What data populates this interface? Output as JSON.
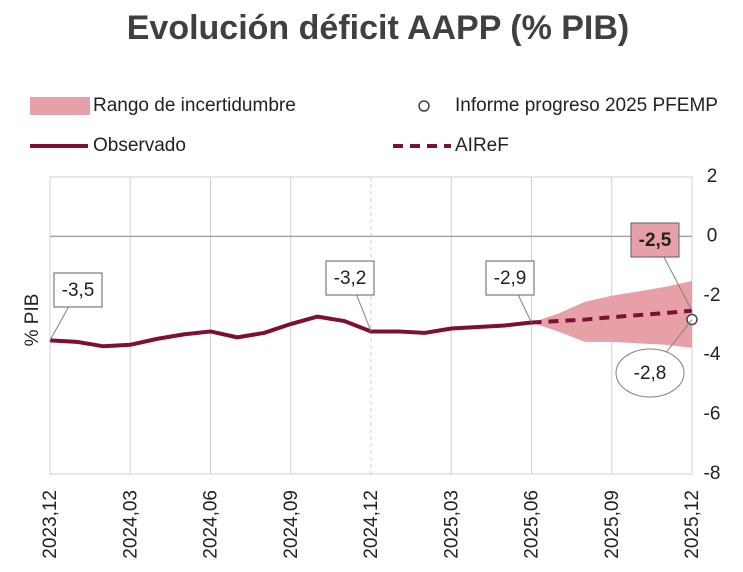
{
  "chart_data": {
    "type": "line",
    "title": "Evolución déficit AAPP (% PIB)",
    "y_label": "% PIB",
    "categories": [
      "2023,12",
      null,
      null,
      "2024,03",
      null,
      null,
      "2024,06",
      null,
      null,
      "2024,09",
      null,
      null,
      "2024,12",
      null,
      null,
      "2025,03",
      null,
      null,
      "2025,06",
      null,
      null,
      "2025,09",
      null,
      null,
      "2025,12"
    ],
    "range": {
      "name": "Rango de incertidumbre",
      "color": "#e8a0a8",
      "upper": [
        null,
        null,
        null,
        null,
        null,
        null,
        null,
        null,
        null,
        null,
        null,
        null,
        null,
        null,
        null,
        null,
        null,
        null,
        -2.9,
        -2.6,
        -2.2,
        -2.0,
        -1.85,
        -1.7,
        -1.5
      ],
      "lower": [
        null,
        null,
        null,
        null,
        null,
        null,
        null,
        null,
        null,
        null,
        null,
        null,
        null,
        null,
        null,
        null,
        null,
        null,
        -2.9,
        -3.2,
        -3.55,
        -3.55,
        -3.6,
        -3.65,
        -3.75
      ]
    },
    "series": [
      {
        "name": "Observado",
        "color": "#7b1030",
        "style": "solid",
        "values": [
          -3.5,
          -3.55,
          -3.7,
          -3.65,
          -3.45,
          -3.3,
          -3.2,
          -3.4,
          -3.25,
          -2.95,
          -2.7,
          -2.85,
          -3.2,
          -3.2,
          -3.25,
          -3.1,
          -3.05,
          -3.0,
          -2.9,
          null,
          null,
          null,
          null,
          null,
          null
        ],
        "value_labels": [
          "-3,5",
          null,
          null,
          null,
          null,
          null,
          null,
          null,
          null,
          null,
          null,
          null,
          "-3,2",
          null,
          null,
          null,
          null,
          null,
          "-2,9",
          null,
          null,
          null,
          null,
          null,
          null
        ]
      },
      {
        "name": "AIReF",
        "color": "#7b1030",
        "style": "dashed",
        "values": [
          null,
          null,
          null,
          null,
          null,
          null,
          null,
          null,
          null,
          null,
          null,
          null,
          null,
          null,
          null,
          null,
          null,
          null,
          -2.9,
          -2.85,
          -2.8,
          -2.72,
          -2.65,
          -2.58,
          -2.5
        ],
        "value_labels": [
          null,
          null,
          null,
          null,
          null,
          null,
          null,
          null,
          null,
          null,
          null,
          null,
          null,
          null,
          null,
          null,
          null,
          null,
          null,
          null,
          null,
          null,
          null,
          null,
          "-2,5"
        ]
      },
      {
        "name": "Informe progreso 2025 PFEMP",
        "color": "#444444",
        "style": "marker",
        "values": [
          null,
          null,
          null,
          null,
          null,
          null,
          null,
          null,
          null,
          null,
          null,
          null,
          null,
          null,
          null,
          null,
          null,
          null,
          null,
          null,
          null,
          null,
          null,
          null,
          -2.8
        ],
        "value_labels": [
          null,
          null,
          null,
          null,
          null,
          null,
          null,
          null,
          null,
          null,
          null,
          null,
          null,
          null,
          null,
          null,
          null,
          null,
          null,
          null,
          null,
          null,
          null,
          null,
          "-2,8"
        ]
      }
    ],
    "ylim": [
      -8,
      2
    ],
    "yticks": [
      2,
      0,
      -2,
      -4,
      -6,
      -8
    ],
    "grid": true
  }
}
